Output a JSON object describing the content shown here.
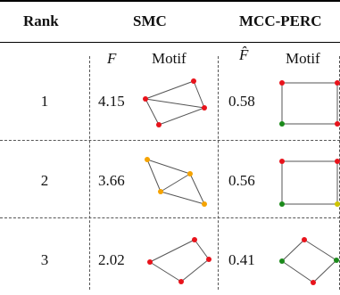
{
  "headers": {
    "rank": "Rank",
    "smc": "SMC",
    "mcc": "MCC-PERC"
  },
  "subheaders": {
    "smc_f": "F",
    "smc_motif": "Motif",
    "mcc_f": "F̂",
    "mcc_motif": "Motif"
  },
  "rows": [
    {
      "rank": "1",
      "smc_f": "4.15",
      "mcc_f": "0.58"
    },
    {
      "rank": "2",
      "smc_f": "3.66",
      "mcc_f": "0.56"
    },
    {
      "rank": "3",
      "smc_f": "2.02",
      "mcc_f": "0.41"
    }
  ],
  "node_colors": {
    "red": "#e8131b",
    "orange": "#f5a300",
    "green": "#1a8a1a",
    "yellow": "#cfc400"
  }
}
